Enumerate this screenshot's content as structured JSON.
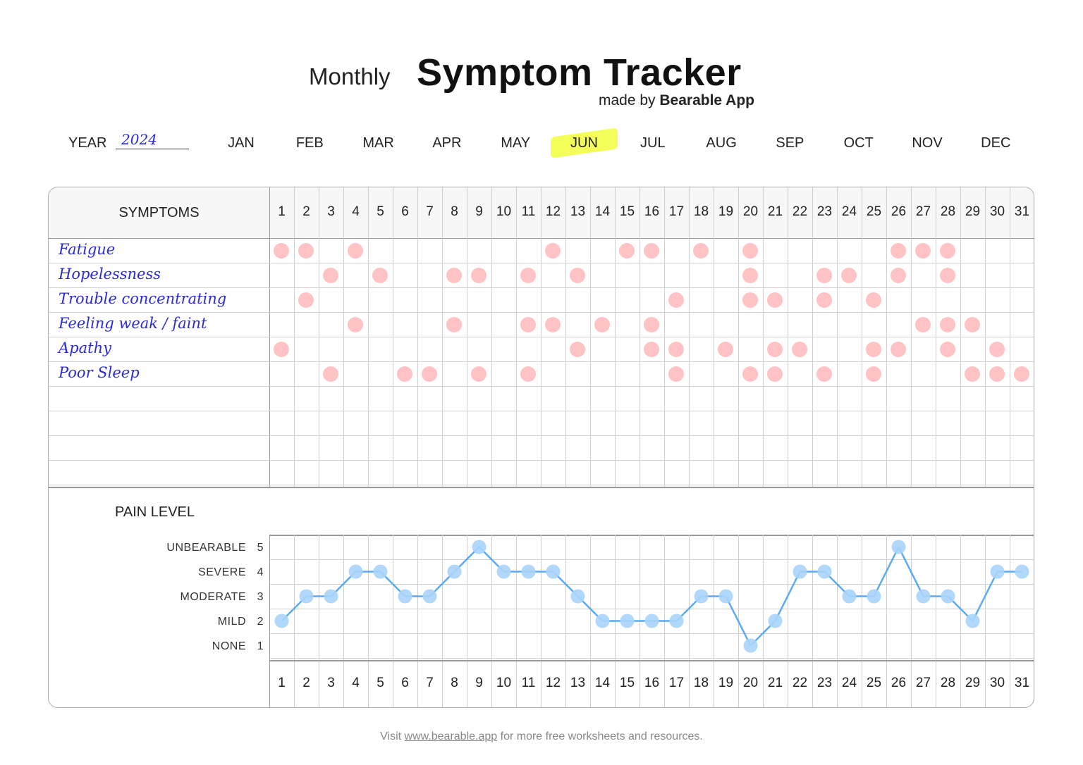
{
  "header": {
    "title_prefix": "Monthly",
    "title": "Symptom Tracker",
    "made_by_prefix": "made by",
    "made_by_brand": "Bearable App"
  },
  "year": {
    "label": "YEAR",
    "value": "2024"
  },
  "months": [
    "JAN",
    "FEB",
    "MAR",
    "APR",
    "MAY",
    "JUN",
    "JUL",
    "AUG",
    "SEP",
    "OCT",
    "NOV",
    "DEC"
  ],
  "selected_month": "JUN",
  "highlight_color": "#f2ff3c",
  "table": {
    "symptoms_header": "SYMPTOMS",
    "days": [
      1,
      2,
      3,
      4,
      5,
      6,
      7,
      8,
      9,
      10,
      11,
      12,
      13,
      14,
      15,
      16,
      17,
      18,
      19,
      20,
      21,
      22,
      23,
      24,
      25,
      26,
      27,
      28,
      29,
      30,
      31
    ],
    "dot_color": "#ffc3c6",
    "symptoms": [
      {
        "name": "Fatigue",
        "days": [
          1,
          2,
          4,
          12,
          15,
          16,
          18,
          20,
          26,
          27,
          28
        ]
      },
      {
        "name": "Hopelessness",
        "days": [
          3,
          5,
          8,
          9,
          11,
          13,
          20,
          23,
          24,
          26,
          28
        ]
      },
      {
        "name": "Trouble concentrating",
        "days": [
          2,
          17,
          20,
          21,
          23,
          25
        ]
      },
      {
        "name": "Feeling weak / faint",
        "days": [
          4,
          8,
          11,
          12,
          14,
          16,
          27,
          28,
          29
        ]
      },
      {
        "name": "Apathy",
        "days": [
          1,
          13,
          16,
          17,
          19,
          21,
          22,
          25,
          26,
          28,
          30
        ]
      },
      {
        "name": "Poor Sleep",
        "days": [
          3,
          6,
          7,
          9,
          11,
          17,
          20,
          21,
          23,
          25,
          29,
          30,
          31
        ]
      }
    ],
    "empty_rows": 4
  },
  "pain": {
    "title": "PAIN LEVEL",
    "line_color": "#5aaaf5",
    "levels": [
      {
        "label": "UNBEARABLE",
        "value": 5
      },
      {
        "label": "SEVERE",
        "value": 4
      },
      {
        "label": "MODERATE",
        "value": 3
      },
      {
        "label": "MILD",
        "value": 2
      },
      {
        "label": "NONE",
        "value": 1
      }
    ],
    "values": [
      2,
      3,
      3,
      4,
      4,
      3,
      3,
      4,
      5,
      4,
      4,
      4,
      3,
      2,
      2,
      2,
      2,
      3,
      3,
      1,
      2,
      4,
      4,
      3,
      3,
      5,
      3,
      3,
      2,
      4,
      4
    ]
  },
  "footer": {
    "prefix": "Visit",
    "link": "www.bearable.app",
    "suffix": "for more free worksheets and resources."
  }
}
